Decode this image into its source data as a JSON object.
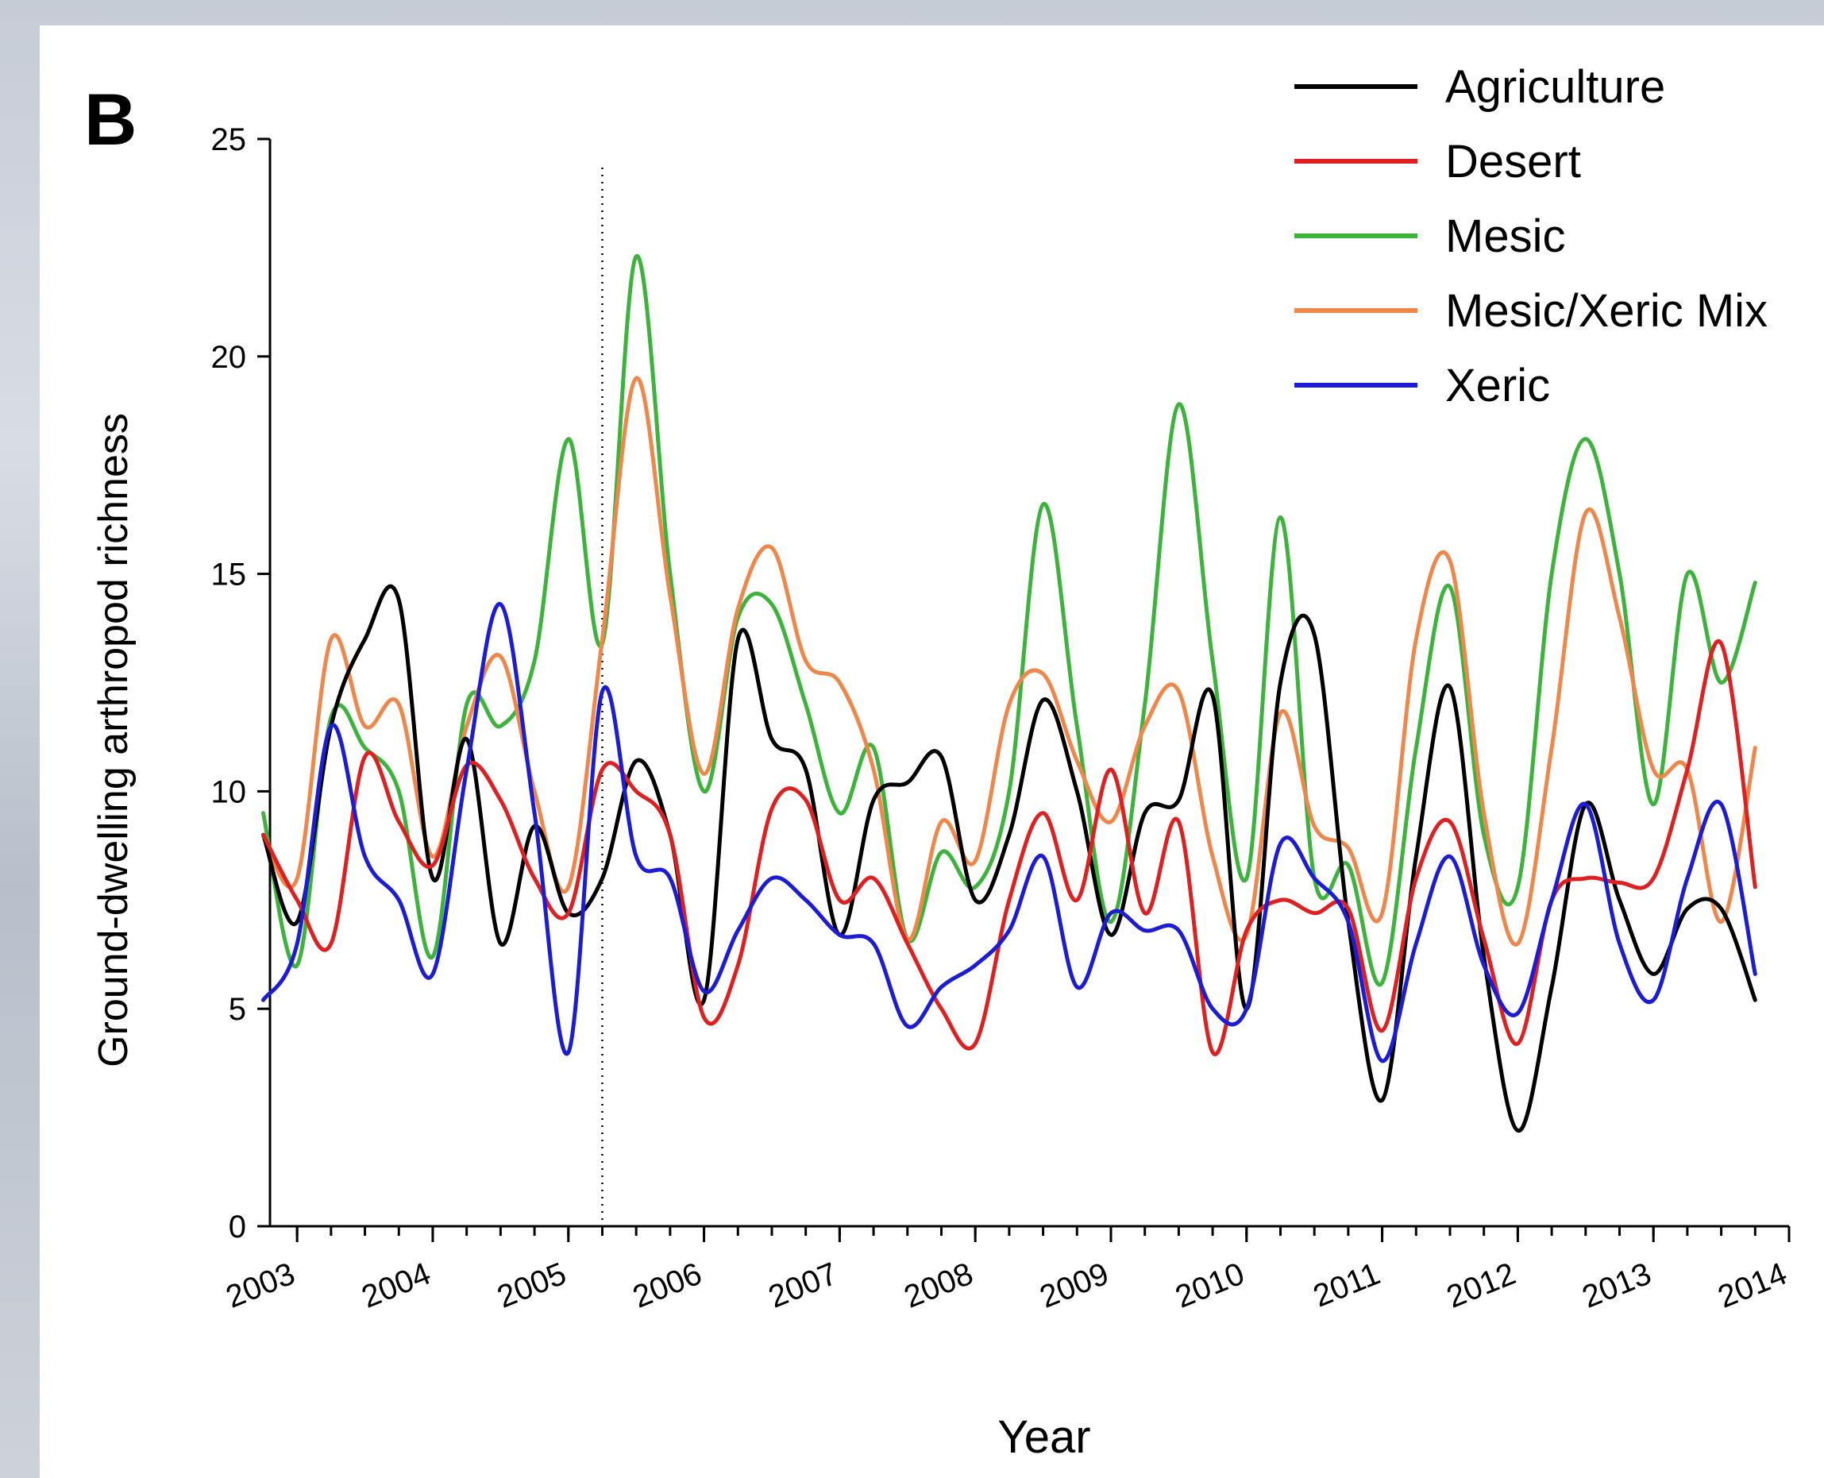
{
  "figure": {
    "panel_label": "B"
  },
  "chart_data": {
    "type": "line",
    "xlabel": "Year",
    "ylabel": "Ground-dwelling arthropod richness",
    "xlim": [
      2002.8,
      2014.0
    ],
    "ylim": [
      0,
      25
    ],
    "x_ticks": [
      2003,
      2004,
      2005,
      2006,
      2007,
      2008,
      2009,
      2010,
      2011,
      2012,
      2013,
      2014
    ],
    "y_ticks": [
      0,
      5,
      10,
      15,
      20,
      25
    ],
    "x_minor_tick_step": 0.25,
    "grid": false,
    "legend": "top-right",
    "reference_line": {
      "x": 2005.25,
      "style": "dotted"
    },
    "series": [
      {
        "name": "Agriculture",
        "color": "#000000",
        "x": [
          2002.75,
          2003.0,
          2003.25,
          2003.5,
          2003.75,
          2004.0,
          2004.25,
          2004.5,
          2004.75,
          2005.0,
          2005.25,
          2005.5,
          2005.75,
          2006.0,
          2006.25,
          2006.5,
          2006.75,
          2007.0,
          2007.25,
          2007.5,
          2007.75,
          2008.0,
          2008.25,
          2008.5,
          2008.75,
          2009.0,
          2009.25,
          2009.5,
          2009.75,
          2010.0,
          2010.25,
          2010.5,
          2010.75,
          2011.0,
          2011.25,
          2011.5,
          2011.75,
          2012.0,
          2012.25,
          2012.5,
          2012.75,
          2013.0,
          2013.25,
          2013.5,
          2013.75
        ],
        "values": [
          9.0,
          7.0,
          11.5,
          13.5,
          14.4,
          8.0,
          11.2,
          6.5,
          9.2,
          7.2,
          8.0,
          10.7,
          9.0,
          5.2,
          13.5,
          11.2,
          10.5,
          6.7,
          9.8,
          10.2,
          10.8,
          7.5,
          9.0,
          12.1,
          10.0,
          6.7,
          9.5,
          9.8,
          12.2,
          5.0,
          12.5,
          13.6,
          7.0,
          2.9,
          8.5,
          12.4,
          6.2,
          2.2,
          5.5,
          9.7,
          7.5,
          5.8,
          7.3,
          7.3,
          5.2
        ]
      },
      {
        "name": "Desert",
        "color": "#e02020",
        "x": [
          2002.75,
          2003.0,
          2003.25,
          2003.5,
          2003.75,
          2004.0,
          2004.25,
          2004.5,
          2004.75,
          2005.0,
          2005.25,
          2005.5,
          2005.75,
          2006.0,
          2006.25,
          2006.5,
          2006.75,
          2007.0,
          2007.25,
          2007.5,
          2007.75,
          2008.0,
          2008.25,
          2008.5,
          2008.75,
          2009.0,
          2009.25,
          2009.5,
          2009.75,
          2010.0,
          2010.25,
          2010.5,
          2010.75,
          2011.0,
          2011.25,
          2011.5,
          2011.75,
          2012.0,
          2012.25,
          2012.5,
          2012.75,
          2013.0,
          2013.25,
          2013.5,
          2013.75
        ],
        "values": [
          9.0,
          7.5,
          6.5,
          10.8,
          9.3,
          8.3,
          10.6,
          9.8,
          8.0,
          7.2,
          10.5,
          10.0,
          9.0,
          4.8,
          6.0,
          9.6,
          9.8,
          7.5,
          8.0,
          6.5,
          5.0,
          4.2,
          7.5,
          9.5,
          7.5,
          10.5,
          7.2,
          9.3,
          4.0,
          6.8,
          7.5,
          7.2,
          7.3,
          4.5,
          8.0,
          9.3,
          6.6,
          4.2,
          7.5,
          8.0,
          7.9,
          8.0,
          10.5,
          13.4,
          7.8
        ]
      },
      {
        "name": "Mesic",
        "color": "#3cb43c",
        "x": [
          2002.75,
          2003.0,
          2003.25,
          2003.5,
          2003.75,
          2004.0,
          2004.25,
          2004.5,
          2004.75,
          2005.0,
          2005.25,
          2005.5,
          2005.75,
          2006.0,
          2006.25,
          2006.5,
          2006.75,
          2007.0,
          2007.25,
          2007.5,
          2007.75,
          2008.0,
          2008.25,
          2008.5,
          2008.75,
          2009.0,
          2009.25,
          2009.5,
          2009.75,
          2010.0,
          2010.25,
          2010.5,
          2010.75,
          2011.0,
          2011.25,
          2011.5,
          2011.75,
          2012.0,
          2012.25,
          2012.5,
          2012.75,
          2013.0,
          2013.25,
          2013.5,
          2013.75
        ],
        "values": [
          9.5,
          6.0,
          11.7,
          11.0,
          10.0,
          6.2,
          12.0,
          11.5,
          13.0,
          18.1,
          13.4,
          22.3,
          15.0,
          10.0,
          14.0,
          14.3,
          12.0,
          9.5,
          11.0,
          6.6,
          8.6,
          7.8,
          10.0,
          16.6,
          11.5,
          7.0,
          12.0,
          18.9,
          13.0,
          8.0,
          16.3,
          8.0,
          8.3,
          5.6,
          11.0,
          14.7,
          9.0,
          7.8,
          15.0,
          18.1,
          15.0,
          9.7,
          15.0,
          12.5,
          14.8
        ]
      },
      {
        "name": "Mesic/Xeric Mix",
        "color": "#f0874a",
        "x": [
          2002.75,
          2003.0,
          2003.25,
          2003.5,
          2003.75,
          2004.0,
          2004.25,
          2004.5,
          2004.75,
          2005.0,
          2005.25,
          2005.5,
          2005.75,
          2006.0,
          2006.25,
          2006.5,
          2006.75,
          2007.0,
          2007.25,
          2007.5,
          2007.75,
          2008.0,
          2008.25,
          2008.5,
          2008.75,
          2009.0,
          2009.25,
          2009.5,
          2009.75,
          2010.0,
          2010.25,
          2010.5,
          2010.75,
          2011.0,
          2011.25,
          2011.5,
          2011.75,
          2012.0,
          2012.25,
          2012.5,
          2012.75,
          2013.0,
          2013.25,
          2013.5,
          2013.75
        ],
        "values": [
          9.0,
          8.0,
          13.5,
          11.5,
          12.0,
          8.5,
          11.5,
          13.1,
          10.0,
          7.8,
          13.5,
          19.5,
          14.5,
          10.4,
          14.2,
          15.6,
          13.0,
          12.5,
          10.5,
          6.6,
          9.3,
          8.4,
          12.0,
          12.7,
          10.7,
          9.3,
          11.5,
          12.3,
          8.5,
          6.7,
          11.8,
          9.2,
          8.7,
          7.2,
          13.5,
          15.3,
          9.5,
          6.5,
          11.0,
          16.4,
          14.0,
          10.5,
          10.5,
          7.0,
          11.0
        ]
      },
      {
        "name": "Xeric",
        "color": "#1c1cd6",
        "x": [
          2002.75,
          2003.0,
          2003.25,
          2003.5,
          2003.75,
          2004.0,
          2004.25,
          2004.5,
          2004.75,
          2005.0,
          2005.25,
          2005.5,
          2005.75,
          2006.0,
          2006.25,
          2006.5,
          2006.75,
          2007.0,
          2007.25,
          2007.5,
          2007.75,
          2008.0,
          2008.25,
          2008.5,
          2008.75,
          2009.0,
          2009.25,
          2009.5,
          2009.75,
          2010.0,
          2010.25,
          2010.5,
          2010.75,
          2011.0,
          2011.25,
          2011.5,
          2011.75,
          2012.0,
          2012.25,
          2012.5,
          2012.75,
          2013.0,
          2013.25,
          2013.5,
          2013.75
        ],
        "values": [
          5.2,
          6.5,
          11.5,
          8.5,
          7.5,
          5.8,
          10.5,
          14.3,
          9.5,
          4.0,
          12.3,
          8.5,
          8.0,
          5.4,
          6.8,
          8.0,
          7.5,
          6.7,
          6.5,
          4.6,
          5.5,
          6.0,
          6.8,
          8.5,
          5.5,
          7.2,
          6.8,
          6.8,
          5.0,
          5.0,
          8.8,
          8.0,
          7.0,
          3.8,
          6.5,
          8.5,
          6.0,
          4.9,
          7.5,
          9.7,
          6.5,
          5.2,
          8.0,
          9.7,
          5.8
        ]
      }
    ]
  }
}
